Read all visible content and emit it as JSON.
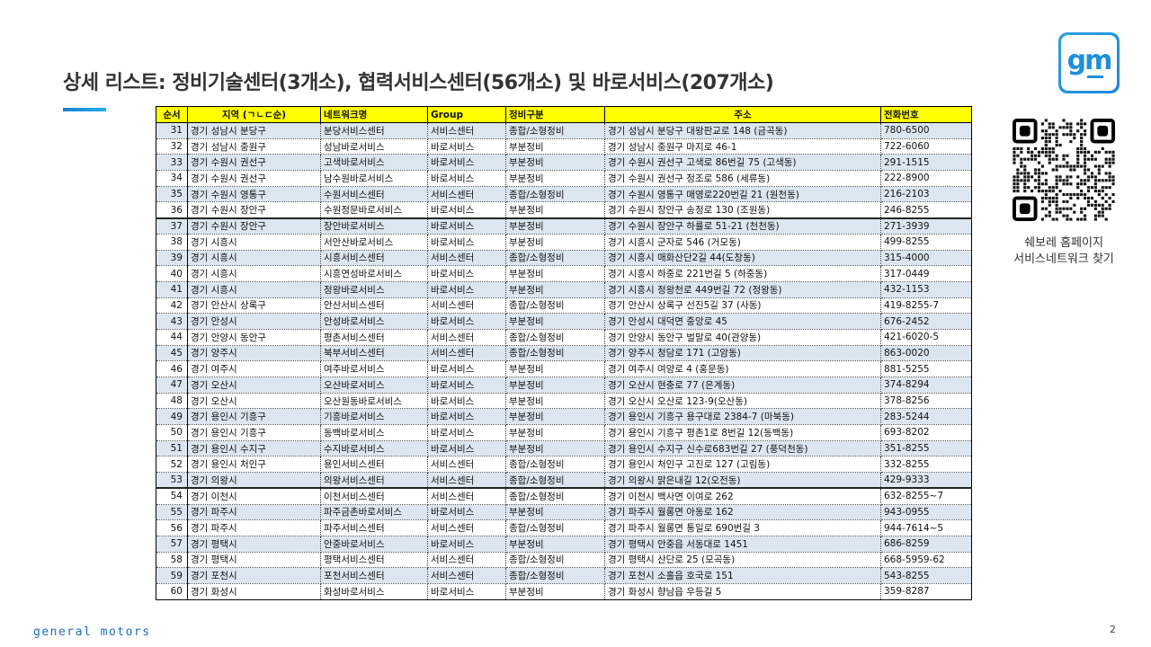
{
  "title": "상세 리스트: 정비기술센터(3개소), 협력서비스센터(56개소) 및 바로서비스(207개소)",
  "logo": {
    "text": "gm",
    "color": "#1d8fdc"
  },
  "qr": {
    "caption_line1": "쉐보레 홈페이지",
    "caption_line2": "서비스네트워크 찾기"
  },
  "footer": {
    "brand": "general motors",
    "page": "2"
  },
  "table": {
    "header_color": "#ffff00",
    "stripe_color": "#dce6f1",
    "columns": [
      "순서",
      "지역 (ㄱㄴㄷ순)",
      "네트워크명",
      "Group",
      "정비구분",
      "주소",
      "전화번호"
    ],
    "rows": [
      [
        "31",
        "경기 성남시 분당구",
        "분당서비스센터",
        "서비스센터",
        "종합/소형정비",
        "경기 성남시 분당구 대왕판교로 148 (금곡동)",
        "780-6500"
      ],
      [
        "32",
        "경기 성남시 중원구",
        "성남바로서비스",
        "바로서비스",
        "부분정비",
        "경기 성남시 중원구 마지로 46-1",
        "722-6060"
      ],
      [
        "33",
        "경기 수원시 권선구",
        "고색바로서비스",
        "바로서비스",
        "부분정비",
        "경기 수원시 권선구 고색로 86번길 75 (고색동)",
        "291-1515"
      ],
      [
        "34",
        "경기 수원시 권선구",
        "남수원바로서비스",
        "바로서비스",
        "부분정비",
        "경기 수원시 권선구 정조로 586 (세류동)",
        "222-8900"
      ],
      [
        "35",
        "경기 수원시 영통구",
        "수원서비스센터",
        "서비스센터",
        "종합/소형정비",
        "경기 수원시 영통구 매영로220번길 21 (원천동)",
        "216-2103"
      ],
      [
        "36",
        "경기 수원시 장안구",
        "수원정문바로서비스",
        "바로서비스",
        "부분정비",
        "경기 수원시 장안구 송정로 130 (조원동)",
        "246-8255"
      ],
      [
        "37",
        "경기 수원시 장안구",
        "장안바로서비스",
        "바로서비스",
        "부분정비",
        "경기 수원시 장안구 하률로 51-21 (천천동)",
        "271-3939"
      ],
      [
        "38",
        "경기 시흥시",
        "서안산바로서비스",
        "바로서비스",
        "부분정비",
        "경기 시흥시 군자로 546 (거모동)",
        "499-8255"
      ],
      [
        "39",
        "경기 시흥시",
        "시흥서비스센터",
        "서비스센터",
        "종합/소형정비",
        "경기 시흥시 매화산단2길 44(도창동)",
        "315-4000"
      ],
      [
        "40",
        "경기 시흥시",
        "시흥연성바로서비스",
        "바로서비스",
        "부분정비",
        "경기 시흥시 하중로 221번길 5 (하중동)",
        "317-0449"
      ],
      [
        "41",
        "경기 시흥시",
        "정왕바로서비스",
        "바로서비스",
        "부분정비",
        "경기 시흥시 정왕천로 449번길 72 (정왕동)",
        "432-1153"
      ],
      [
        "42",
        "경기 안산시 상록구",
        "안산서비스센터",
        "서비스센터",
        "종합/소형정비",
        "경기 안산시 상록구 선진5길 37 (사동)",
        "419-8255-7"
      ],
      [
        "43",
        "경기 안성시",
        "안성바로서비스",
        "바로서비스",
        "부분정비",
        "경기 안성시 대덕면 중앙로 45",
        "676-2452"
      ],
      [
        "44",
        "경기 안양시 동안구",
        "평촌서비스센터",
        "서비스센터",
        "종합/소형정비",
        "경기 안양시 동안구 벌말로 40(관양동)",
        "421-6020-5"
      ],
      [
        "45",
        "경기 양주시",
        "북부서비스센터",
        "서비스센터",
        "종합/소형정비",
        "경기 양주시 청담로 171 (고암동)",
        "863-0020"
      ],
      [
        "46",
        "경기 여주시",
        "여주바로서비스",
        "바로서비스",
        "부분정비",
        "경기 여주시 여양로 4 (홍문동)",
        "881-5255"
      ],
      [
        "47",
        "경기 오산시",
        "오산바로서비스",
        "바로서비스",
        "부분정비",
        "경기 오산시 현충로 77 (은계동)",
        "374-8294"
      ],
      [
        "48",
        "경기 오산시",
        "오산원동바로서비스",
        "바로서비스",
        "부분정비",
        "경기 오산시 오산로 123-9(오산동)",
        "378-8256"
      ],
      [
        "49",
        "경기 용인시 기흥구",
        "기흥바로서비스",
        "바로서비스",
        "부분정비",
        "경기 용인시 기흥구 용구대로 2384-7 (마북동)",
        "283-5244"
      ],
      [
        "50",
        "경기 용인시 기흥구",
        "동백바로서비스",
        "바로서비스",
        "부분정비",
        "경기 용인시 기흥구 평촌1로 8번길 12(동백동)",
        "693-8202"
      ],
      [
        "51",
        "경기 용인시 수지구",
        "수지바로서비스",
        "바로서비스",
        "부분정비",
        "경기 용인시 수지구 신수로683번길 27 (풍덕천동)",
        "351-8255"
      ],
      [
        "52",
        "경기 용인시 처인구",
        "용인서비스센터",
        "서비스센터",
        "종합/소형정비",
        "경기 용인시 처인구 고진로 127 (고림동)",
        "332-8255"
      ],
      [
        "53",
        "경기 의왕시",
        "의왕서비스센터",
        "서비스센터",
        "종합/소형정비",
        "경기 의왕시 맑은내길 12(오전동)",
        "429-9333"
      ],
      [
        "54",
        "경기 이천시",
        "이천서비스센터",
        "서비스센터",
        "종합/소형정비",
        "경기 이천시 백사면 이여로 262",
        "632-8255~7"
      ],
      [
        "55",
        "경기 파주시",
        "파주금촌바로서비스",
        "바로서비스",
        "부분정비",
        "경기 파주시 월롱면 아동로 162",
        "943-0955"
      ],
      [
        "56",
        "경기 파주시",
        "파주서비스센터",
        "서비스센터",
        "종합/소형정비",
        "경기 파주시 월롱면 통일로 690번길 3",
        "944-7614~5"
      ],
      [
        "57",
        "경기 평택시",
        "안중바로서비스",
        "바로서비스",
        "부분정비",
        "경기 평택시 안중읍 서동대로 1451",
        "686-8259"
      ],
      [
        "58",
        "경기 평택시",
        "평택서비스센터",
        "서비스센터",
        "종합/소형정비",
        "경기 평택시 산단로 25 (모곡동)",
        "668-5959-62"
      ],
      [
        "59",
        "경기 포천시",
        "포천서비스센터",
        "서비스센터",
        "종합/소형정비",
        "경기 포천시 소흘읍 호국로 151",
        "543-8255"
      ],
      [
        "60",
        "경기 화성시",
        "화성바로서비스",
        "바로서비스",
        "부분정비",
        "경기 화성시 향남읍 우등길 5",
        "359-8287"
      ]
    ]
  }
}
